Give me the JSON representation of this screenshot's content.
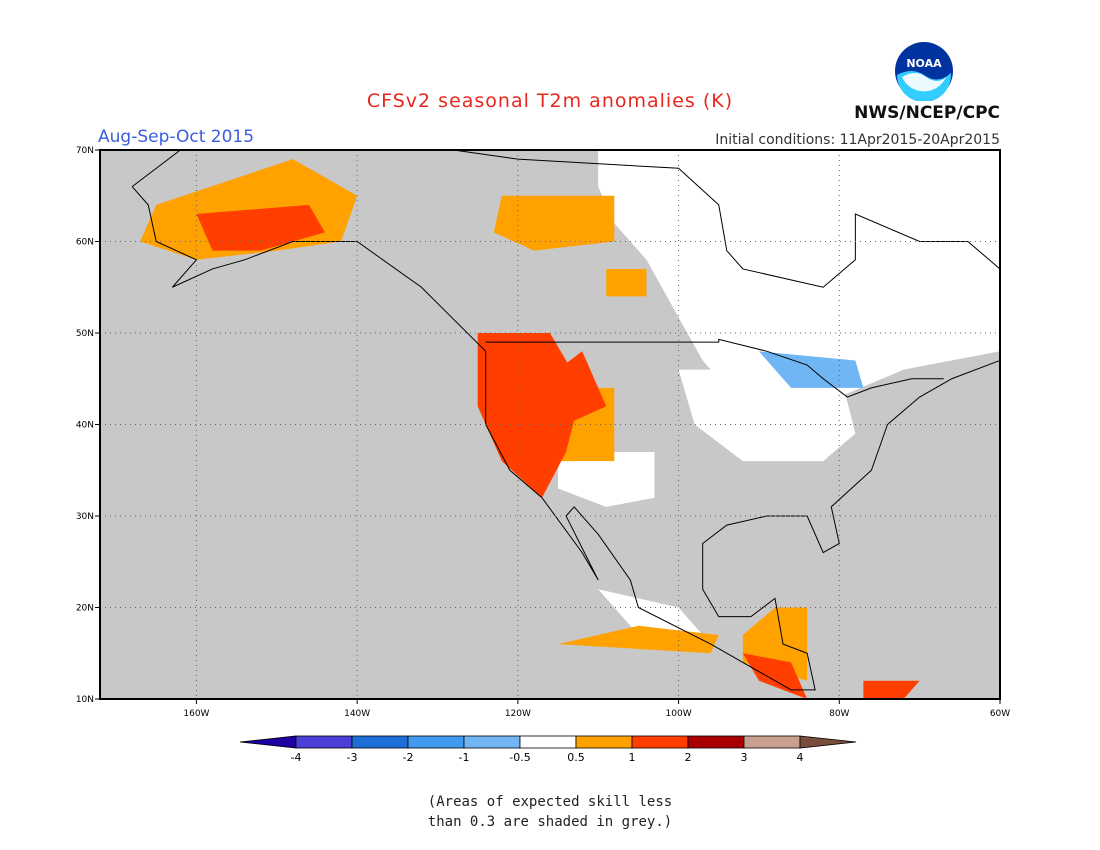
{
  "header": {
    "title": "CFSv2 seasonal T2m anomalies (K)",
    "season": "Aug-Sep-Oct 2015",
    "initial_conditions": "Initial conditions: 11Apr2015-20Apr2015",
    "agency": "NWS/NCEP/CPC",
    "logo_text": "NOAA"
  },
  "map": {
    "lon_range": [
      -172,
      -60
    ],
    "lat_range": [
      10,
      70
    ],
    "lon_ticks": [
      "160W",
      "140W",
      "120W",
      "100W",
      "80W",
      "60W"
    ],
    "lat_ticks": [
      "70N",
      "60N",
      "50N",
      "40N",
      "30N",
      "20N",
      "10N"
    ],
    "colors": {
      "ocean": "#c8c8c8",
      "land_grey": "#c8c8c8",
      "white": "#ffffff",
      "light_orange": "#ffa200",
      "red_orange": "#ff3e00",
      "light_blue": "#70b6f5"
    }
  },
  "legend": {
    "labels": [
      "-4",
      "-3",
      "-2",
      "-1",
      "-0.5",
      "0.5",
      "1",
      "2",
      "3",
      "4"
    ],
    "colors": [
      "#1e00a0",
      "#4a3fd6",
      "#1e6ed8",
      "#3f9af0",
      "#72b6f5",
      "#ffffff",
      "#ffa200",
      "#ff3e00",
      "#a80000",
      "#c9a090",
      "#7a4c3c"
    ]
  },
  "footnote": {
    "line1": "(Areas of expected skill less",
    "line2": "than 0.3 are shaded in grey.)"
  }
}
